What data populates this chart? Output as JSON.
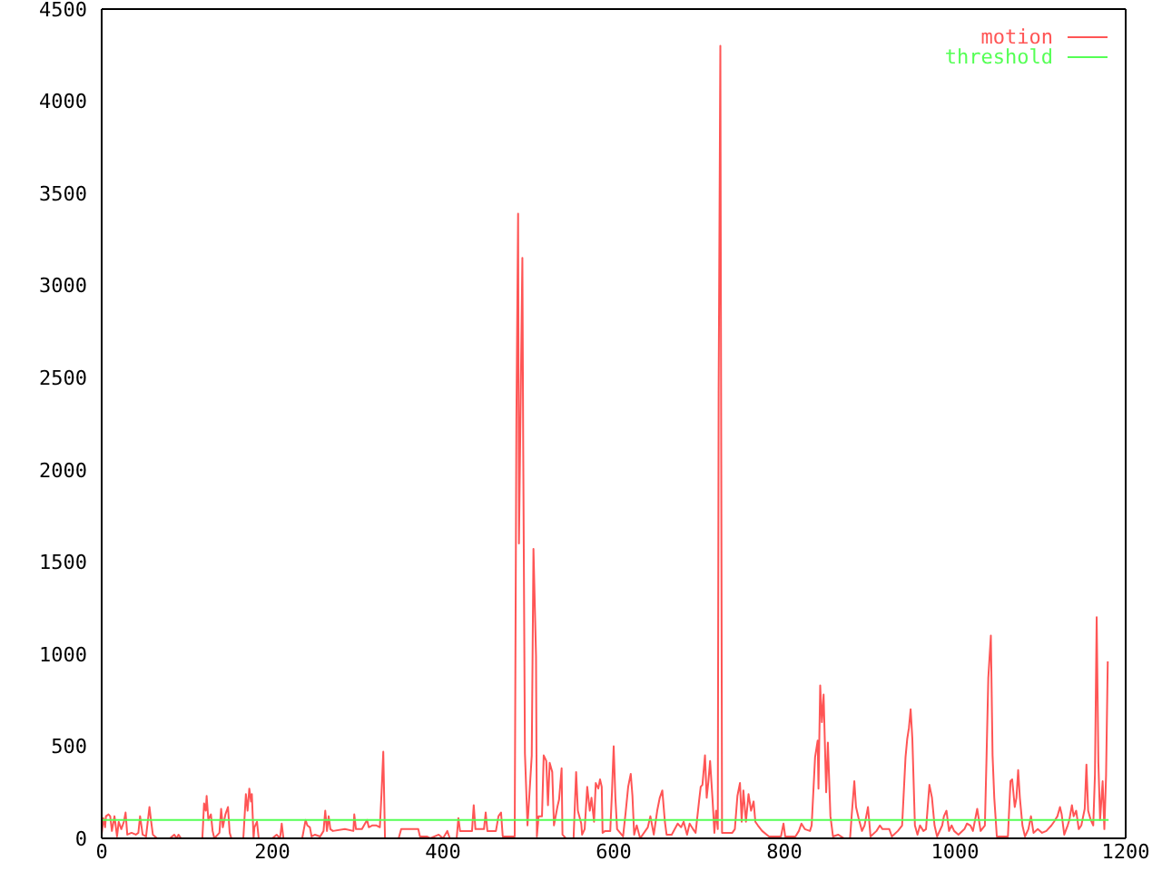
{
  "chart_data": {
    "type": "line",
    "xlim": [
      0,
      1200
    ],
    "xticks": [
      0,
      200,
      400,
      600,
      800,
      1000,
      1200
    ],
    "ylim": [
      0,
      4500
    ],
    "yticks": [
      0,
      500,
      1000,
      1500,
      2000,
      2500,
      3000,
      3500,
      4000,
      4500
    ],
    "legend": "top right",
    "series": [
      {
        "name": "motion",
        "color": "#ff5555",
        "x": [
          0,
          2,
          4,
          5,
          8,
          10,
          12,
          15,
          18,
          20,
          23,
          26,
          28,
          30,
          35,
          40,
          43,
          45,
          48,
          52,
          56,
          58,
          60,
          65,
          80,
          85,
          88,
          90,
          93,
          105,
          118,
          120,
          122,
          123,
          125,
          128,
          130,
          132,
          138,
          140,
          142,
          145,
          148,
          150,
          152,
          166,
          169,
          171,
          173,
          175,
          176,
          178,
          179,
          182,
          184,
          200,
          205,
          209,
          211,
          213,
          235,
          239,
          241,
          244,
          246,
          250,
          256,
          260,
          262,
          264,
          266,
          268,
          271,
          285,
          295,
          296,
          298,
          305,
          311,
          313,
          317,
          322,
          326,
          328,
          330,
          332,
          348,
          351,
          371,
          373,
          381,
          385,
          395,
          400,
          405,
          408,
          416,
          418,
          420,
          434,
          436,
          438,
          448,
          450,
          452,
          462,
          465,
          468,
          470,
          484,
          486,
          488,
          489,
          493,
          494,
          496,
          499,
          501,
          504,
          506,
          509,
          510,
          512,
          516,
          518,
          521,
          523,
          525,
          528,
          530,
          534,
          536,
          539,
          540,
          544,
          553,
          556,
          558,
          562,
          563,
          566,
          569,
          572,
          574,
          577,
          579,
          582,
          584,
          586,
          587,
          590,
          596,
          598,
          600,
          602,
          604,
          611,
          614,
          617,
          620,
          622,
          624,
          627,
          631,
          640,
          643,
          647,
          651,
          654,
          657,
          660,
          662,
          668,
          675,
          679,
          682,
          686,
          689,
          693,
          696,
          700,
          702,
          704,
          707,
          709,
          711,
          713,
          716,
          718,
          720,
          722,
          723,
          725,
          727,
          739,
          742,
          745,
          748,
          750,
          752,
          755,
          758,
          761,
          764,
          766,
          769,
          774,
          782,
          796,
          799,
          801,
          813,
          817,
          820,
          824,
          830,
          832,
          836,
          839,
          840,
          842,
          844,
          846,
          849,
          851,
          854,
          857,
          863,
          870,
          877,
          879,
          882,
          884,
          887,
          891,
          894,
          898,
          901,
          908,
          912,
          915,
          923,
          926,
          933,
          938,
          942,
          944,
          946,
          948,
          950,
          953,
          956,
          959,
          963,
          966,
          970,
          973,
          976,
          979,
          985,
          987,
          990,
          993,
          996,
          999,
          1004,
          1011,
          1014,
          1018,
          1021,
          1026,
          1030,
          1035,
          1037,
          1039,
          1042,
          1044,
          1046,
          1049,
          1062,
          1065,
          1067,
          1070,
          1072,
          1074,
          1076,
          1079,
          1082,
          1086,
          1089,
          1092,
          1097,
          1102,
          1107,
          1113,
          1116,
          1120,
          1123,
          1125,
          1128,
          1132,
          1134,
          1137,
          1139,
          1142,
          1145,
          1148,
          1152,
          1154,
          1156,
          1159,
          1162,
          1164,
          1166,
          1168,
          1170,
          1173,
          1175,
          1177,
          1179
        ],
        "values": [
          20,
          110,
          60,
          120,
          130,
          120,
          40,
          120,
          10,
          90,
          50,
          90,
          140,
          20,
          30,
          20,
          30,
          120,
          20,
          10,
          170,
          90,
          20,
          0,
          0,
          20,
          0,
          20,
          0,
          0,
          0,
          190,
          150,
          230,
          100,
          130,
          40,
          0,
          30,
          160,
          60,
          130,
          170,
          30,
          0,
          0,
          240,
          150,
          270,
          200,
          240,
          0,
          60,
          90,
          0,
          0,
          20,
          0,
          80,
          0,
          0,
          100,
          70,
          60,
          10,
          20,
          10,
          40,
          150,
          40,
          120,
          50,
          40,
          50,
          40,
          130,
          50,
          50,
          100,
          60,
          70,
          70,
          60,
          250,
          470,
          0,
          0,
          50,
          50,
          10,
          10,
          0,
          20,
          0,
          40,
          0,
          0,
          110,
          40,
          40,
          180,
          50,
          50,
          140,
          40,
          40,
          120,
          140,
          10,
          10,
          2270,
          3390,
          1600,
          3150,
          2110,
          460,
          70,
          220,
          450,
          1570,
          990,
          10,
          120,
          120,
          450,
          420,
          180,
          410,
          360,
          70,
          170,
          210,
          380,
          20,
          0,
          0,
          360,
          150,
          80,
          20,
          50,
          280,
          150,
          220,
          90,
          300,
          270,
          320,
          280,
          30,
          40,
          40,
          250,
          500,
          220,
          50,
          10,
          140,
          280,
          350,
          230,
          20,
          70,
          0,
          60,
          120,
          20,
          150,
          220,
          260,
          90,
          20,
          20,
          80,
          60,
          90,
          20,
          80,
          50,
          30,
          200,
          280,
          290,
          450,
          220,
          310,
          420,
          200,
          30,
          150,
          50,
          2420,
          4300,
          30,
          30,
          50,
          230,
          300,
          90,
          260,
          90,
          240,
          150,
          200,
          90,
          70,
          40,
          10,
          10,
          80,
          10,
          10,
          40,
          80,
          50,
          40,
          70,
          440,
          530,
          270,
          830,
          630,
          780,
          250,
          520,
          120,
          10,
          20,
          0,
          0,
          130,
          310,
          170,
          110,
          40,
          70,
          170,
          10,
          40,
          70,
          50,
          50,
          10,
          40,
          70,
          440,
          540,
          600,
          700,
          540,
          70,
          20,
          70,
          40,
          50,
          290,
          220,
          70,
          10,
          70,
          120,
          150,
          40,
          70,
          40,
          20,
          50,
          80,
          70,
          40,
          160,
          40,
          70,
          450,
          870,
          1100,
          450,
          220,
          10,
          10,
          310,
          320,
          170,
          220,
          370,
          220,
          70,
          10,
          50,
          120,
          30,
          50,
          30,
          40,
          70,
          90,
          120,
          170,
          130,
          20,
          70,
          100,
          180,
          120,
          150,
          50,
          70,
          160,
          400,
          150,
          100,
          70,
          350,
          1200,
          410,
          100,
          310,
          50,
          340,
          960
        ]
      },
      {
        "name": "threshold",
        "color": "#55ff55",
        "x": [
          0,
          1180
        ],
        "values": [
          100,
          100
        ]
      }
    ]
  }
}
